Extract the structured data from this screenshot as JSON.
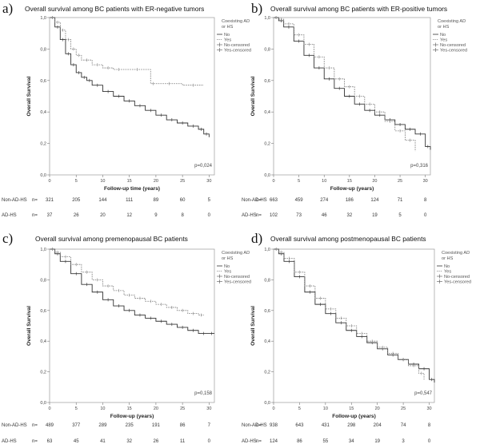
{
  "chart_data": [
    {
      "type": "line",
      "letter": "a)",
      "title": "Overall survival among BC patients with ER-negative tumors",
      "xlabel": "Follow-up time (years)",
      "ylabel": "Overall Survival",
      "xlim": [
        0,
        31
      ],
      "ylim": [
        0,
        1.0
      ],
      "xticks": [
        "0",
        "5",
        "10",
        "15",
        "20",
        "25",
        "30"
      ],
      "yticks": [
        "0,0",
        "0,2",
        "0,4",
        "0,6",
        "0,8",
        "1,0"
      ],
      "legend_title": [
        "Coexisting AD",
        "or HS"
      ],
      "legend": [
        "No",
        "Yes",
        "No-censored",
        "Yes-censored"
      ],
      "p_value": "p=0,024",
      "series": [
        {
          "name": "No",
          "x": [
            0,
            1,
            2,
            3,
            4,
            5,
            6,
            7,
            8,
            10,
            12,
            14,
            16,
            18,
            20,
            22,
            24,
            26,
            28,
            29,
            30
          ],
          "y": [
            1.0,
            0.94,
            0.86,
            0.77,
            0.7,
            0.65,
            0.62,
            0.6,
            0.57,
            0.53,
            0.5,
            0.47,
            0.44,
            0.41,
            0.38,
            0.35,
            0.33,
            0.31,
            0.29,
            0.26,
            0.24
          ]
        },
        {
          "name": "Yes",
          "x": [
            0,
            1,
            2,
            3,
            4,
            5,
            6,
            8,
            10,
            12,
            14,
            19,
            20,
            25,
            29
          ],
          "y": [
            1.0,
            0.97,
            0.92,
            0.86,
            0.8,
            0.76,
            0.73,
            0.7,
            0.68,
            0.67,
            0.67,
            0.58,
            0.58,
            0.57,
            0.57
          ]
        }
      ],
      "risk_table": {
        "rows": [
          {
            "label": "Non-AD-HS",
            "n": "n=",
            "values": [
              "321",
              "205",
              "144",
              "111",
              "89",
              "60",
              "5"
            ]
          },
          {
            "label": "AD-HS",
            "n": "n=",
            "values": [
              "37",
              "26",
              "20",
              "12",
              "9",
              "8",
              "0"
            ]
          }
        ]
      }
    },
    {
      "type": "line",
      "letter": "b)",
      "title": "Overall survival among BC patients with ER-positive tumors",
      "xlabel": "Follow-up (years)",
      "ylabel": "Overall Survival",
      "xlim": [
        0,
        31
      ],
      "ylim": [
        0,
        1.0
      ],
      "xticks": [
        "0",
        "5",
        "10",
        "15",
        "20",
        "25",
        "30"
      ],
      "yticks": [
        "0,0",
        "0,2",
        "0,4",
        "0,6",
        "0,8",
        "1,0"
      ],
      "legend_title": [
        "Coexisting AD",
        "or HS"
      ],
      "legend": [
        "No",
        "Yes",
        "No-censored",
        "Yes-censored"
      ],
      "p_value": "p=0,316",
      "series": [
        {
          "name": "No",
          "x": [
            0,
            1,
            2,
            4,
            6,
            8,
            10,
            12,
            14,
            16,
            18,
            20,
            22,
            24,
            26,
            28,
            30,
            31
          ],
          "y": [
            1.0,
            0.98,
            0.94,
            0.85,
            0.76,
            0.68,
            0.61,
            0.55,
            0.5,
            0.45,
            0.41,
            0.38,
            0.35,
            0.32,
            0.29,
            0.26,
            0.18,
            0.16
          ]
        },
        {
          "name": "Yes",
          "x": [
            0,
            1,
            2,
            4,
            6,
            8,
            10,
            12,
            14,
            16,
            18,
            20,
            22,
            24,
            26,
            28
          ],
          "y": [
            1.0,
            0.99,
            0.96,
            0.89,
            0.83,
            0.75,
            0.68,
            0.61,
            0.56,
            0.5,
            0.45,
            0.4,
            0.34,
            0.28,
            0.22,
            0.15
          ]
        }
      ],
      "risk_table": {
        "rows": [
          {
            "label": "Non-AD-HS",
            "n": "n=",
            "values": [
              "663",
              "459",
              "274",
              "186",
              "124",
              "71",
              "8"
            ]
          },
          {
            "label": "AD-HS",
            "n": "n=",
            "values": [
              "102",
              "73",
              "46",
              "32",
              "19",
              "5",
              "0"
            ]
          }
        ]
      }
    },
    {
      "type": "line",
      "letter": "c)",
      "title": "Overall survival among premenopausal BC patients",
      "xlabel": "Follow-up (years)",
      "ylabel": "Overall Survival",
      "xlim": [
        0,
        31
      ],
      "ylim": [
        0,
        1.0
      ],
      "xticks": [
        "0",
        "5",
        "10",
        "15",
        "20",
        "25",
        "30"
      ],
      "yticks": [
        "0,0",
        "0,2",
        "0,4",
        "0,6",
        "0,8",
        "1,0"
      ],
      "legend_title": [
        "Coexisting AD",
        "or HS"
      ],
      "legend": [
        "No",
        "Yes",
        "No-censored",
        "Yes-censored"
      ],
      "p_value": "p=0,158",
      "series": [
        {
          "name": "No",
          "x": [
            0,
            1,
            2,
            4,
            6,
            8,
            10,
            12,
            14,
            16,
            18,
            20,
            22,
            24,
            26,
            28,
            30,
            31
          ],
          "y": [
            1.0,
            0.97,
            0.92,
            0.84,
            0.77,
            0.72,
            0.67,
            0.63,
            0.6,
            0.57,
            0.55,
            0.53,
            0.51,
            0.49,
            0.47,
            0.45,
            0.45,
            0.45
          ]
        },
        {
          "name": "Yes",
          "x": [
            0,
            1,
            2,
            4,
            6,
            8,
            10,
            12,
            14,
            16,
            18,
            20,
            22,
            24,
            26,
            28,
            29
          ],
          "y": [
            1.0,
            0.98,
            0.95,
            0.9,
            0.85,
            0.8,
            0.76,
            0.73,
            0.7,
            0.68,
            0.66,
            0.64,
            0.62,
            0.6,
            0.58,
            0.57,
            0.57
          ]
        }
      ],
      "risk_table": {
        "rows": [
          {
            "label": "Non-AD-HS",
            "n": "n=",
            "values": [
              "489",
              "377",
              "289",
              "235",
              "191",
              "86",
              "7"
            ]
          },
          {
            "label": "AD-HS",
            "n": "n=",
            "values": [
              "63",
              "45",
              "41",
              "32",
              "26",
              "11",
              "0"
            ]
          }
        ]
      }
    },
    {
      "type": "line",
      "letter": "d)",
      "title": "Overall survival among postmenopausal BC patients",
      "xlabel": "Follow-up (years)",
      "ylabel": "Overall Survival",
      "xlim": [
        0,
        31
      ],
      "ylim": [
        0,
        1.0
      ],
      "xticks": [
        "0",
        "5",
        "10",
        "15",
        "20",
        "25",
        "30"
      ],
      "yticks": [
        "0,0",
        "0,2",
        "0,4",
        "0,6",
        "0,8",
        "1,0"
      ],
      "legend_title": [
        "Coexisting AD",
        "or HS"
      ],
      "legend": [
        "No",
        "Yes",
        "No-censored",
        "Yes-censored"
      ],
      "p_value": "p=0,547",
      "series": [
        {
          "name": "No",
          "x": [
            0,
            1,
            2,
            4,
            6,
            8,
            10,
            12,
            14,
            16,
            18,
            20,
            22,
            24,
            26,
            28,
            30,
            31
          ],
          "y": [
            1.0,
            0.97,
            0.92,
            0.82,
            0.72,
            0.64,
            0.58,
            0.52,
            0.47,
            0.43,
            0.39,
            0.35,
            0.31,
            0.28,
            0.25,
            0.22,
            0.15,
            0.13
          ]
        },
        {
          "name": "Yes",
          "x": [
            0,
            1,
            2,
            4,
            6,
            8,
            10,
            12,
            14,
            16,
            18,
            20,
            22,
            24,
            26,
            28,
            29
          ],
          "y": [
            1.0,
            0.98,
            0.94,
            0.85,
            0.76,
            0.68,
            0.61,
            0.55,
            0.5,
            0.45,
            0.4,
            0.36,
            0.32,
            0.28,
            0.24,
            0.19,
            0.15
          ]
        }
      ],
      "risk_table": {
        "rows": [
          {
            "label": "Non-AD-HS",
            "n": "n=",
            "values": [
              "938",
              "643",
              "431",
              "298",
              "204",
              "74",
              "8"
            ]
          },
          {
            "label": "AD-HS",
            "n": "n=",
            "values": [
              "124",
              "86",
              "55",
              "34",
              "19",
              "3",
              "0"
            ]
          }
        ]
      }
    }
  ]
}
